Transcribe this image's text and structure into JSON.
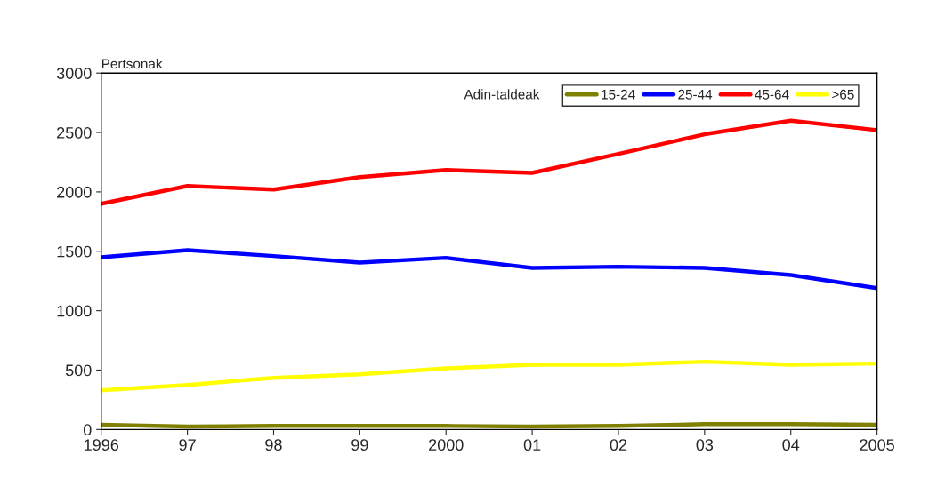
{
  "chart_data": {
    "type": "line",
    "ylabel": "Pertsonak",
    "legend_title": "Adin-taldeak",
    "categories": [
      "1996",
      "97",
      "98",
      "99",
      "2000",
      "01",
      "02",
      "03",
      "04",
      "2005"
    ],
    "series": [
      {
        "name": "15-24",
        "color": "#808000",
        "values": [
          40,
          25,
          30,
          30,
          30,
          25,
          30,
          45,
          45,
          40
        ]
      },
      {
        "name": "25-44",
        "color": "#0000ff",
        "values": [
          1450,
          1510,
          1460,
          1405,
          1445,
          1360,
          1370,
          1360,
          1300,
          1190
        ]
      },
      {
        "name": "45-64",
        "color": "#ff0000",
        "values": [
          1900,
          2050,
          2020,
          2125,
          2185,
          2160,
          2320,
          2485,
          2600,
          2520
        ]
      },
      {
        "name": ">65",
        "color": "#ffff00",
        "values": [
          330,
          375,
          435,
          465,
          515,
          545,
          545,
          570,
          545,
          555
        ]
      }
    ],
    "ylim": [
      0,
      3000
    ],
    "yticks": [
      0,
      500,
      1000,
      1500,
      2000,
      2500,
      3000
    ],
    "grid": false,
    "legend": "top right",
    "marker": "none",
    "line_style": "solid"
  }
}
